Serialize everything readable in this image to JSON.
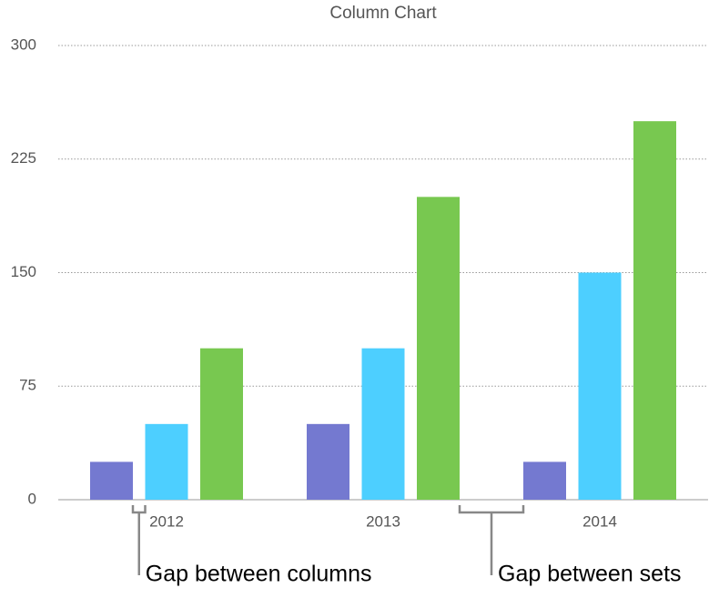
{
  "chart_data": {
    "type": "bar",
    "title": "Column Chart",
    "categories": [
      "2012",
      "2013",
      "2014"
    ],
    "series": [
      {
        "color": "#7479d0",
        "values": [
          25,
          50,
          25
        ]
      },
      {
        "color": "#4dcfff",
        "values": [
          50,
          100,
          150
        ]
      },
      {
        "color": "#78c850",
        "values": [
          100,
          200,
          250
        ]
      }
    ],
    "ylim": [
      0,
      300
    ],
    "yticks": [
      0,
      75,
      150,
      225,
      300
    ],
    "grid": true,
    "annotations": [
      "Gap between columns",
      "Gap between sets"
    ]
  }
}
